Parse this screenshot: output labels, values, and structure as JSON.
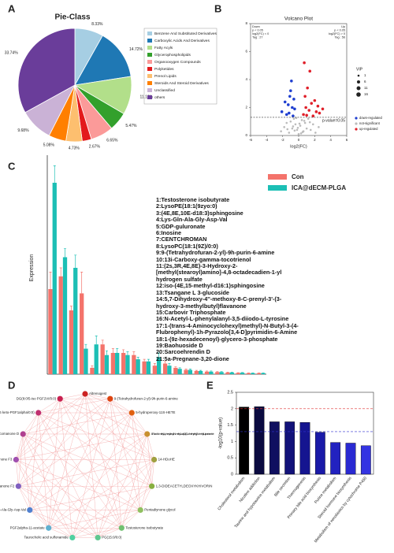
{
  "chart_data": [
    {
      "type": "pie",
      "label": "A",
      "title": "Pie-Class",
      "categories": [
        "Benzene And Substituted Derivatives",
        "Carboxylic Acids And Derivatives",
        "Fatty Acyls",
        "Glycerophospholipids",
        "Organooxygen Compounds",
        "Polyketides",
        "Prenol Lipids",
        "Steroids And Steroid Derivatives",
        "Unclassified",
        "others"
      ],
      "values": [
        8.33,
        14.72,
        11.12,
        5.47,
        6.65,
        2.67,
        4.73,
        5.08,
        9.68,
        33.74
      ],
      "value_labels": [
        "8.33%",
        "14.72%",
        "11.12%",
        "5.47%",
        "6.65%",
        "2.67%",
        "4.73%",
        "5.08%",
        "9.68%",
        "33.74%"
      ],
      "colors": [
        "#a6cee3",
        "#1f78b4",
        "#b2df8a",
        "#33a02c",
        "#fb9a99",
        "#e31a1c",
        "#fdbf6f",
        "#ff7f00",
        "#cab2d6",
        "#6a3d9a"
      ]
    },
    {
      "type": "scatter",
      "label": "B",
      "title": "Volcano Plot",
      "x_label": "log2(FC)",
      "xlim": [
        -6,
        6
      ],
      "xticks": [
        -6,
        -4,
        -2,
        0,
        2,
        4,
        6
      ],
      "ylim": [
        0,
        8
      ],
      "yticks": [
        0,
        2,
        4,
        6,
        8
      ],
      "threshold": 1.3,
      "threshold_label": "p-value=0.05",
      "down_text": [
        "Down",
        "p < 0.05",
        "log2(FC) < 0",
        "Tag : 27"
      ],
      "up_text": [
        "Up",
        "p < 0.05",
        "log2(FC) > 0",
        "Tag : 56"
      ],
      "size_legend": {
        "title": "VIP",
        "values": [
          1,
          6,
          11,
          16
        ]
      },
      "series": [
        {
          "name": "down-regulated",
          "color": "#1f3fd0",
          "x": [
            -1.2,
            -0.8,
            -1.5,
            -0.6,
            -1.0,
            -2.1,
            -0.9,
            -1.3,
            -0.7,
            -1.1,
            -1.7,
            -0.5
          ],
          "y": [
            1.6,
            2.0,
            1.5,
            2.6,
            3.2,
            1.7,
            3.9,
            2.2,
            1.4,
            2.8,
            2.4,
            1.9
          ]
        },
        {
          "name": "not-significant",
          "color": "#bbbbbb",
          "x": [
            -2.2,
            -1.8,
            -1.5,
            -1.2,
            -1.0,
            -0.8,
            -0.6,
            -0.4,
            -0.2,
            0.0,
            0.2,
            0.4,
            0.6,
            0.8,
            1.0,
            1.2,
            1.5,
            1.8,
            2.1,
            -0.3,
            0.3,
            -0.7,
            0.7,
            -1.4,
            1.4,
            -0.1,
            0.1,
            0.5,
            -0.5,
            2.5
          ],
          "y": [
            0.3,
            0.6,
            0.9,
            0.2,
            1.0,
            0.5,
            1.2,
            0.8,
            0.4,
            0.1,
            0.7,
            1.1,
            0.3,
            0.9,
            0.5,
            1.2,
            0.4,
            0.8,
            0.2,
            1.25,
            0.15,
            0.65,
            1.05,
            0.45,
            0.95,
            0.55,
            0.85,
            0.25,
            0.35,
            0.6
          ]
        },
        {
          "name": "up-regulated",
          "color": "#e0202a",
          "x": [
            0.6,
            0.9,
            1.3,
            1.8,
            2.2,
            0.8,
            1.1,
            1.6,
            2.6,
            3.0,
            1.4,
            0.7,
            2.0,
            2.4,
            1.0
          ],
          "y": [
            1.5,
            2.0,
            1.8,
            1.4,
            1.7,
            2.8,
            3.4,
            2.3,
            1.6,
            1.9,
            4.6,
            5.2,
            2.5,
            2.1,
            1.45
          ]
        }
      ]
    },
    {
      "type": "bar",
      "label": "C",
      "y_label": "Expression",
      "ylim": [
        0,
        100
      ],
      "categories": [
        "1:Testosterone isobutyrate",
        "2:LysoPE(18:1(9zyo:0)",
        "3:(4E,8E,10E-d18:3)sphingosine",
        "4:Lys-Gln-Ala-Gly-Asp-Val",
        "5:GDP-guluronate",
        "6:Inosine",
        "7:CENTCHROMAN",
        "8:LysoPC(18:1(9Z)/0:0)",
        "9:9-(Tetrahydrofuran-2-yl)-9h-purin-6-amine",
        "10:13i-Carboxy-gamma-tocotrienol",
        "11:(2s,3R,4E,8E)-3-Hydroxy-2-[methyl(stearoyl)amino]-4,8-octadecadien-1-yl hydrogen sulfate",
        "12:iso-(4E,15-methyl-d16:1)sphingosine",
        "13:Tsangane L 3-glucoside",
        "14:5,7-Dihydroxy-4''-methoxy-8-C-prenyl-3'-(3-hydroxy-3-methylbutyl)flavanone",
        "15:Carbovir Triphosphate",
        "16:N-Acetyl-L-phenylalanyl-3,5-diiodo-L-tyrosine",
        "17:1-(trans-4-Aminocyclohexyl)methyl)-N-Butyl-3-(4-Flubrophenyl)-1h-Pyrazolo[3,4-D]pyrimidin-6-Amine",
        "18:1-(9z-hexadecenoyl)-glycero-3-phosphate",
        "19:Baohuoside D",
        "20:Sarcoehrendin D",
        "21:5a-Pregnane-3,20-dione"
      ],
      "series": [
        {
          "name": "Con",
          "color": "#f4736b",
          "values": [
            40,
            46,
            30,
            38,
            3,
            14,
            10,
            10,
            9,
            6,
            4,
            5,
            3,
            2,
            1.5,
            1.2,
            1,
            0.8,
            0.6,
            0.5,
            0.5
          ],
          "errors": [
            8,
            4,
            2,
            10,
            1,
            2,
            2,
            1.5,
            1.5,
            1,
            1,
            1,
            0.5,
            0.4,
            0.3,
            0.3,
            0.2,
            0.2,
            0.1,
            0.1,
            0.1
          ]
        },
        {
          "name": "ICA@dECM-PLGA",
          "color": "#1cbfb5",
          "values": [
            90,
            55,
            50,
            12,
            14,
            9,
            10,
            9,
            7,
            6,
            8,
            4,
            2.5,
            2,
            1.5,
            1.2,
            1,
            0.8,
            0.7,
            0.5,
            0.5
          ],
          "errors": [
            8,
            4,
            6,
            2,
            4,
            2,
            2,
            1.5,
            1,
            1,
            2,
            1,
            0.5,
            0.4,
            0.3,
            0.3,
            0.2,
            0.2,
            0.1,
            0.1,
            0.1
          ]
        }
      ]
    },
    {
      "type": "bar",
      "label": "E",
      "y_label": "-log10(p-value)",
      "ylim": [
        0,
        2.5
      ],
      "yticks": [
        0,
        0.5,
        1.0,
        1.5,
        2.0,
        2.5
      ],
      "categories": [
        "Cholesterol metabolism",
        "Nicotine addiction",
        "Taurine and hypotaurine metabolism",
        "Bile secretion",
        "Thermogenesis",
        "Primary bile acid biosynthesis",
        "Purine metabolism",
        "Steroid hormone biosynthesis",
        "Metabolism of xenobiotics by cytochrome P450"
      ],
      "values": [
        2.05,
        2.06,
        1.6,
        1.6,
        1.58,
        1.28,
        0.97,
        0.95,
        0.87
      ],
      "colors": [
        "#000000",
        "#0b0b40",
        "#101060",
        "#12127a",
        "#151590",
        "#1a1aa8",
        "#2222c0",
        "#2a2ad2",
        "#3434e2"
      ],
      "reference_lines": [
        {
          "value": 2.0,
          "color": "#e03030"
        },
        {
          "value": 1.3,
          "color": "#3030d0"
        }
      ]
    }
  ],
  "network": {
    "label": "D",
    "nodes": [
      {
        "label": "Altrenogest",
        "color": "#cc2222"
      },
      {
        "label": "9-(Tetrahydrofuran-2-yl)-9h-purin-6-amine",
        "color": "#dd4411"
      },
      {
        "label": "5-hydroperoxy-11S-HETE",
        "color": "#e06010"
      },
      {
        "label": "8-Fluoro-N-methyl-L-phenylalanyl-N-methyl-L-valyl-3-(1,1-dimethylethyl)-N-methyl-L-tyrosinamide",
        "color": "#c89030"
      },
      {
        "label": "14-HDoHE",
        "color": "#a0a040"
      },
      {
        "label": "1,3-DIDEACETYLDEOXYKHIVORIN",
        "color": "#88b040"
      },
      {
        "label": "Pentadiynone glycol",
        "color": "#90c060"
      },
      {
        "label": "Testosterone isobutyrate",
        "color": "#70c070"
      },
      {
        "label": "PG(15:0/0:0)",
        "color": "#60c890"
      },
      {
        "label": "Taurocholic acid sulfonamide",
        "color": "#50d0a0"
      },
      {
        "label": "PGF2alpha-11-acetate",
        "color": "#60b0d0"
      },
      {
        "label": "Lys-Gln-Ala-Gly-Asp-Val",
        "color": "#5080d0"
      },
      {
        "label": "Eurycomanone F2",
        "color": "#8060c0"
      },
      {
        "label": "Eurycomanone F3",
        "color": "#a050b0"
      },
      {
        "label": "Eurycomanone D",
        "color": "#b04090"
      },
      {
        "label": "DG(8:0/6 keto-PGF1alpha/0:0)",
        "color": "#c03070"
      },
      {
        "label": "DG(8:0/5-iso PGF2VI/0:0)",
        "color": "#c82050"
      }
    ]
  }
}
